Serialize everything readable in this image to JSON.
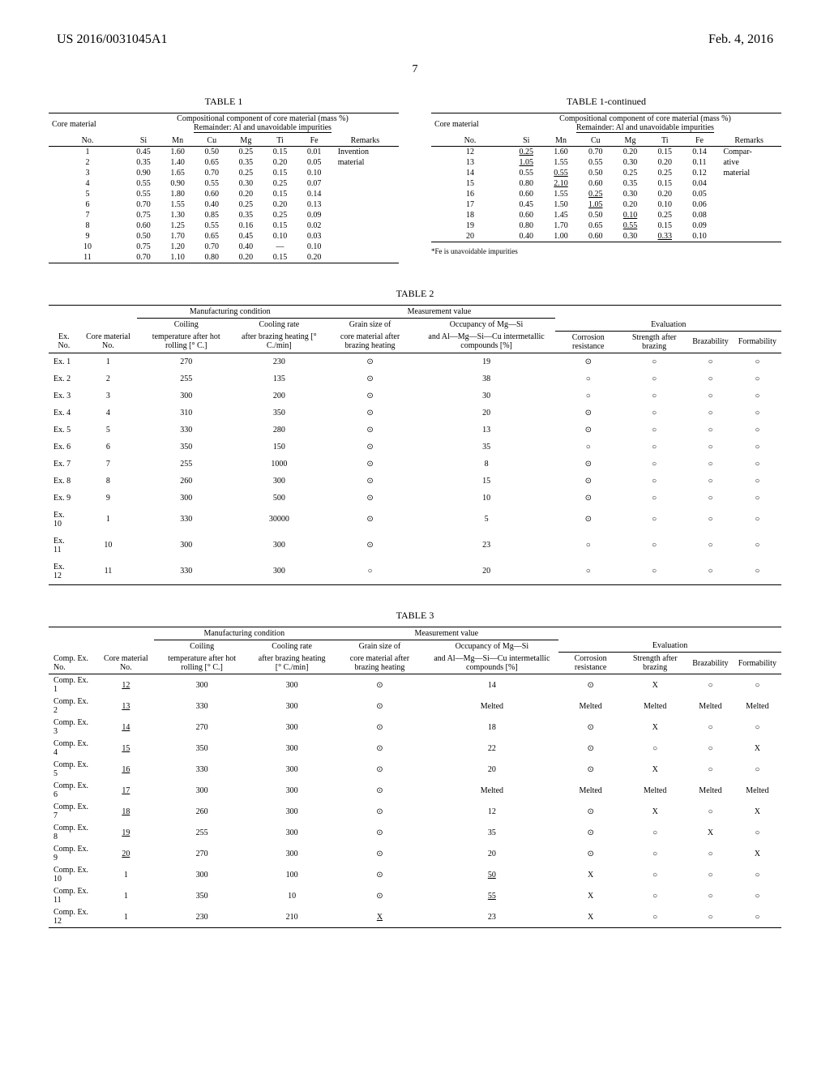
{
  "header": {
    "left": "US 2016/0031045A1",
    "right": "Feb. 4, 2016"
  },
  "page_number": "7",
  "table1": {
    "caption": "TABLE 1",
    "core_label": "Core material",
    "comp_header": "Compositional component of core material (mass %)",
    "remainder": "Remainder: Al and unavoidable impurities",
    "columns": [
      "No.",
      "Si",
      "Mn",
      "Cu",
      "Mg",
      "Ti",
      "Fe",
      "Remarks"
    ],
    "rows": [
      {
        "no": "1",
        "si": "0.45",
        "mn": "1.60",
        "cu": "0.50",
        "mg": "0.25",
        "ti": "0.15",
        "fe": "0.01",
        "rem": "Invention"
      },
      {
        "no": "2",
        "si": "0.35",
        "mn": "1.40",
        "cu": "0.65",
        "mg": "0.35",
        "ti": "0.20",
        "fe": "0.05",
        "rem": "material"
      },
      {
        "no": "3",
        "si": "0.90",
        "mn": "1.65",
        "cu": "0.70",
        "mg": "0.25",
        "ti": "0.15",
        "fe": "0.10",
        "rem": ""
      },
      {
        "no": "4",
        "si": "0.55",
        "mn": "0.90",
        "cu": "0.55",
        "mg": "0.30",
        "ti": "0.25",
        "fe": "0.07",
        "rem": ""
      },
      {
        "no": "5",
        "si": "0.55",
        "mn": "1.80",
        "cu": "0.60",
        "mg": "0.20",
        "ti": "0.15",
        "fe": "0.14",
        "rem": ""
      },
      {
        "no": "6",
        "si": "0.70",
        "mn": "1.55",
        "cu": "0.40",
        "mg": "0.25",
        "ti": "0.20",
        "fe": "0.13",
        "rem": ""
      },
      {
        "no": "7",
        "si": "0.75",
        "mn": "1.30",
        "cu": "0.85",
        "mg": "0.35",
        "ti": "0.25",
        "fe": "0.09",
        "rem": ""
      },
      {
        "no": "8",
        "si": "0.60",
        "mn": "1.25",
        "cu": "0.55",
        "mg": "0.16",
        "ti": "0.15",
        "fe": "0.02",
        "rem": ""
      },
      {
        "no": "9",
        "si": "0.50",
        "mn": "1.70",
        "cu": "0.65",
        "mg": "0.45",
        "ti": "0.10",
        "fe": "0.03",
        "rem": ""
      },
      {
        "no": "10",
        "si": "0.75",
        "mn": "1.20",
        "cu": "0.70",
        "mg": "0.40",
        "ti": "—",
        "fe": "0.10",
        "rem": ""
      },
      {
        "no": "11",
        "si": "0.70",
        "mn": "1.10",
        "cu": "0.80",
        "mg": "0.20",
        "ti": "0.15",
        "fe": "0.20",
        "rem": ""
      }
    ]
  },
  "table1b": {
    "caption": "TABLE 1-continued",
    "rows": [
      {
        "no": "12",
        "si": "0.25",
        "si_u": true,
        "mn": "1.60",
        "cu": "0.70",
        "mg": "0.20",
        "ti": "0.15",
        "fe": "0.14",
        "rem": "Compar-"
      },
      {
        "no": "13",
        "si": "1.05",
        "si_u": true,
        "mn": "1.55",
        "cu": "0.55",
        "mg": "0.30",
        "ti": "0.20",
        "fe": "0.11",
        "rem": "ative"
      },
      {
        "no": "14",
        "si": "0.55",
        "mn": "0.55",
        "mn_u": true,
        "cu": "0.50",
        "mg": "0.25",
        "ti": "0.25",
        "fe": "0.12",
        "rem": "material"
      },
      {
        "no": "15",
        "si": "0.80",
        "mn": "2.10",
        "mn_u": true,
        "cu": "0.60",
        "mg": "0.35",
        "ti": "0.15",
        "fe": "0.04",
        "rem": ""
      },
      {
        "no": "16",
        "si": "0.60",
        "mn": "1.55",
        "cu": "0.25",
        "cu_u": true,
        "mg": "0.30",
        "ti": "0.20",
        "fe": "0.05",
        "rem": ""
      },
      {
        "no": "17",
        "si": "0.45",
        "mn": "1.50",
        "cu": "1.05",
        "cu_u": true,
        "mg": "0.20",
        "ti": "0.10",
        "fe": "0.06",
        "rem": ""
      },
      {
        "no": "18",
        "si": "0.60",
        "mn": "1.45",
        "cu": "0.50",
        "mg": "0.10",
        "mg_u": true,
        "ti": "0.25",
        "fe": "0.08",
        "rem": ""
      },
      {
        "no": "19",
        "si": "0.80",
        "mn": "1.70",
        "cu": "0.65",
        "mg": "0.55",
        "mg_u": true,
        "ti": "0.15",
        "fe": "0.09",
        "rem": ""
      },
      {
        "no": "20",
        "si": "0.40",
        "mn": "1.00",
        "cu": "0.60",
        "mg": "0.30",
        "ti": "0.33",
        "ti_u": true,
        "fe": "0.10",
        "rem": ""
      }
    ],
    "footnote": "*Fe is unavoidable impurities"
  },
  "table2": {
    "caption": "TABLE 2",
    "group_headers": {
      "mfg": "Manufacturing condition",
      "meas": "Measurement value",
      "eval": "Evaluation"
    },
    "sub_headers": {
      "coiling": "Coiling",
      "cooling": "Cooling rate",
      "grain": "Grain size of",
      "occ": "Occupancy of Mg—Si"
    },
    "col_headers": {
      "exno": "Ex. No.",
      "core": "Core material No.",
      "temp": "temperature after hot rolling [° C.]",
      "rate": "after brazing heating [° C./min]",
      "grain": "core material after brazing heating",
      "occ": "and Al—Mg—Si—Cu intermetallic compounds [%]",
      "corr": "Corrosion resistance",
      "str": "Strength after brazing",
      "braz": "Brazability",
      "form": "Formability"
    },
    "rows": [
      {
        "ex": "Ex. 1",
        "core": "1",
        "temp": "270",
        "rate": "230",
        "grain": "⊙",
        "occ": "19",
        "corr": "⊙",
        "str": "○",
        "braz": "○",
        "form": "○"
      },
      {
        "ex": "Ex. 2",
        "core": "2",
        "temp": "255",
        "rate": "135",
        "grain": "⊙",
        "occ": "38",
        "corr": "○",
        "str": "○",
        "braz": "○",
        "form": "○"
      },
      {
        "ex": "Ex. 3",
        "core": "3",
        "temp": "300",
        "rate": "200",
        "grain": "⊙",
        "occ": "30",
        "corr": "○",
        "str": "○",
        "braz": "○",
        "form": "○"
      },
      {
        "ex": "Ex. 4",
        "core": "4",
        "temp": "310",
        "rate": "350",
        "grain": "⊙",
        "occ": "20",
        "corr": "⊙",
        "str": "○",
        "braz": "○",
        "form": "○"
      },
      {
        "ex": "Ex. 5",
        "core": "5",
        "temp": "330",
        "rate": "280",
        "grain": "⊙",
        "occ": "13",
        "corr": "⊙",
        "str": "○",
        "braz": "○",
        "form": "○"
      },
      {
        "ex": "Ex. 6",
        "core": "6",
        "temp": "350",
        "rate": "150",
        "grain": "⊙",
        "occ": "35",
        "corr": "○",
        "str": "○",
        "braz": "○",
        "form": "○"
      },
      {
        "ex": "Ex. 7",
        "core": "7",
        "temp": "255",
        "rate": "1000",
        "grain": "⊙",
        "occ": "8",
        "corr": "⊙",
        "str": "○",
        "braz": "○",
        "form": "○"
      },
      {
        "ex": "Ex. 8",
        "core": "8",
        "temp": "260",
        "rate": "300",
        "grain": "⊙",
        "occ": "15",
        "corr": "⊙",
        "str": "○",
        "braz": "○",
        "form": "○"
      },
      {
        "ex": "Ex. 9",
        "core": "9",
        "temp": "300",
        "rate": "500",
        "grain": "⊙",
        "occ": "10",
        "corr": "⊙",
        "str": "○",
        "braz": "○",
        "form": "○"
      },
      {
        "ex": "Ex. 10",
        "core": "1",
        "temp": "330",
        "rate": "30000",
        "grain": "⊙",
        "occ": "5",
        "corr": "⊙",
        "str": "○",
        "braz": "○",
        "form": "○"
      },
      {
        "ex": "Ex. 11",
        "core": "10",
        "temp": "300",
        "rate": "300",
        "grain": "⊙",
        "occ": "23",
        "corr": "○",
        "str": "○",
        "braz": "○",
        "form": "○"
      },
      {
        "ex": "Ex. 12",
        "core": "11",
        "temp": "330",
        "rate": "300",
        "grain": "○",
        "occ": "20",
        "corr": "○",
        "str": "○",
        "braz": "○",
        "form": "○"
      }
    ]
  },
  "table3": {
    "caption": "TABLE 3",
    "rows": [
      {
        "ex": "Comp. Ex. 1",
        "core": "12",
        "core_u": true,
        "temp": "300",
        "rate": "300",
        "grain": "⊙",
        "occ": "14",
        "corr": "⊙",
        "str": "X",
        "braz": "○",
        "form": "○"
      },
      {
        "ex": "Comp. Ex. 2",
        "core": "13",
        "core_u": true,
        "temp": "330",
        "rate": "300",
        "grain": "⊙",
        "occ": "Melted",
        "corr": "Melted",
        "str": "Melted",
        "braz": "Melted",
        "form": "Melted"
      },
      {
        "ex": "Comp. Ex. 3",
        "core": "14",
        "core_u": true,
        "temp": "270",
        "rate": "300",
        "grain": "⊙",
        "occ": "18",
        "corr": "⊙",
        "str": "X",
        "braz": "○",
        "form": "○"
      },
      {
        "ex": "Comp. Ex. 4",
        "core": "15",
        "core_u": true,
        "temp": "350",
        "rate": "300",
        "grain": "⊙",
        "occ": "22",
        "corr": "⊙",
        "str": "○",
        "braz": "○",
        "form": "X"
      },
      {
        "ex": "Comp. Ex. 5",
        "core": "16",
        "core_u": true,
        "temp": "330",
        "rate": "300",
        "grain": "⊙",
        "occ": "20",
        "corr": "⊙",
        "str": "X",
        "braz": "○",
        "form": "○"
      },
      {
        "ex": "Comp. Ex. 6",
        "core": "17",
        "core_u": true,
        "temp": "300",
        "rate": "300",
        "grain": "⊙",
        "occ": "Melted",
        "corr": "Melted",
        "str": "Melted",
        "braz": "Melted",
        "form": "Melted"
      },
      {
        "ex": "Comp. Ex. 7",
        "core": "18",
        "core_u": true,
        "temp": "260",
        "rate": "300",
        "grain": "⊙",
        "occ": "12",
        "corr": "⊙",
        "str": "X",
        "braz": "○",
        "form": "X"
      },
      {
        "ex": "Comp. Ex. 8",
        "core": "19",
        "core_u": true,
        "temp": "255",
        "rate": "300",
        "grain": "⊙",
        "occ": "35",
        "corr": "⊙",
        "str": "○",
        "braz": "X",
        "form": "○"
      },
      {
        "ex": "Comp. Ex. 9",
        "core": "20",
        "core_u": true,
        "temp": "270",
        "rate": "300",
        "grain": "⊙",
        "occ": "20",
        "corr": "⊙",
        "str": "○",
        "braz": "○",
        "form": "X"
      },
      {
        "ex": "Comp. Ex. 10",
        "core": "1",
        "temp": "300",
        "rate": "100",
        "grain": "⊙",
        "occ": "50",
        "occ_u": true,
        "corr": "X",
        "str": "○",
        "braz": "○",
        "form": "○"
      },
      {
        "ex": "Comp. Ex. 11",
        "core": "1",
        "temp": "350",
        "rate": "10",
        "grain": "⊙",
        "occ": "55",
        "occ_u": true,
        "corr": "X",
        "str": "○",
        "braz": "○",
        "form": "○"
      },
      {
        "ex": "Comp. Ex. 12",
        "core": "1",
        "temp": "230",
        "rate": "210",
        "grain": "X",
        "grain_u": true,
        "occ": "23",
        "corr": "X",
        "str": "○",
        "braz": "○",
        "form": "○"
      }
    ]
  }
}
